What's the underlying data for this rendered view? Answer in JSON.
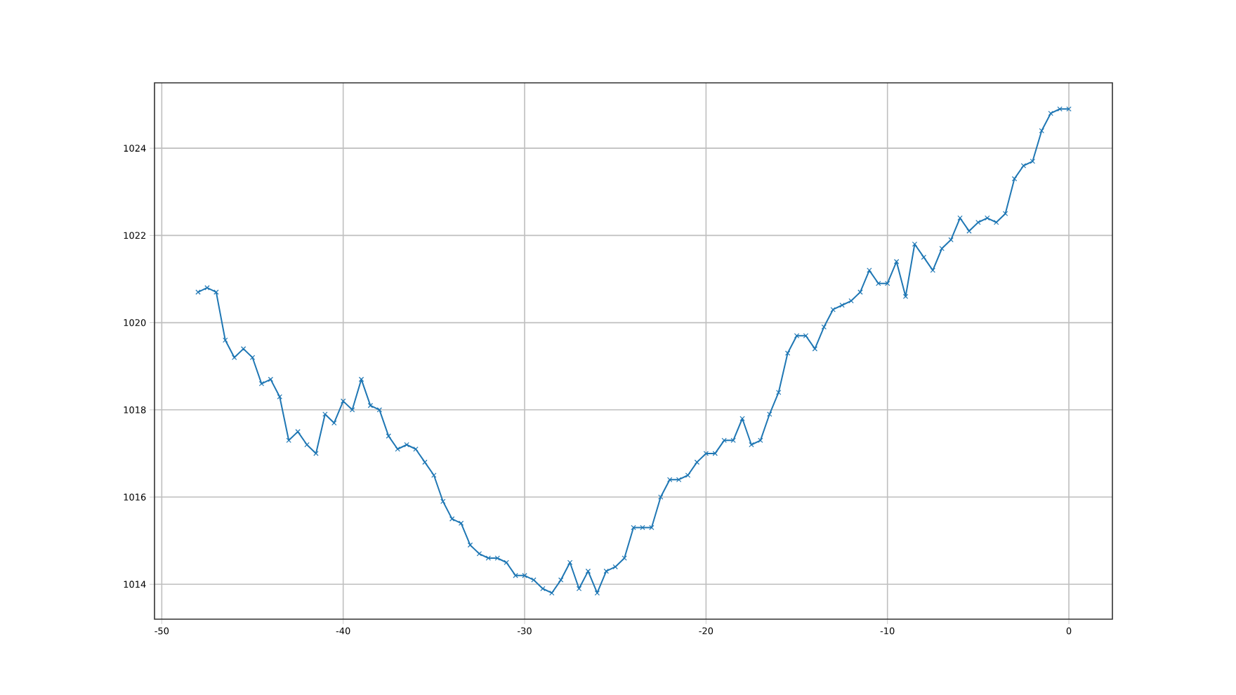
{
  "chart_data": {
    "type": "line",
    "x": [
      -48,
      -47.5,
      -47,
      -46.5,
      -46,
      -45.5,
      -45,
      -44.5,
      -44,
      -43.5,
      -43,
      -42.5,
      -42,
      -41.5,
      -41,
      -40.5,
      -40,
      -39.5,
      -39,
      -38.5,
      -38,
      -37.5,
      -37,
      -36.5,
      -36,
      -35.5,
      -35,
      -34.5,
      -34,
      -33.5,
      -33,
      -32.5,
      -32,
      -31.5,
      -31,
      -30.5,
      -30,
      -29.5,
      -29,
      -28.5,
      -28,
      -27.5,
      -27,
      -26.5,
      -26,
      -25.5,
      -25,
      -24.5,
      -24,
      -23.5,
      -23,
      -22.5,
      -22,
      -21.5,
      -21,
      -20.5,
      -20,
      -19.5,
      -19,
      -18.5,
      -18,
      -17.5,
      -17,
      -16.5,
      -16,
      -15.5,
      -15,
      -14.5,
      -14,
      -13.5,
      -13,
      -12.5,
      -12,
      -11.5,
      -11,
      -10.5,
      -10,
      -9.5,
      -9,
      -8.5,
      -8,
      -7.5,
      -7,
      -6.5,
      -6,
      -5.5,
      -5,
      -4.5,
      -4,
      -3.5,
      -3,
      -2.5,
      -2,
      -1.5,
      -1,
      -0.5,
      0
    ],
    "series": [
      {
        "color": "#1f77b4",
        "values": [
          1020.7,
          1020.8,
          1020.7,
          1019.6,
          1019.2,
          1019.4,
          1019.2,
          1018.6,
          1018.7,
          1018.3,
          1017.3,
          1017.5,
          1017.2,
          1017.0,
          1017.9,
          1017.7,
          1018.2,
          1018.0,
          1018.7,
          1018.1,
          1018.0,
          1017.4,
          1017.1,
          1017.2,
          1017.1,
          1016.8,
          1016.5,
          1015.9,
          1015.5,
          1015.4,
          1014.9,
          1014.7,
          1014.6,
          1014.6,
          1014.5,
          1014.2,
          1014.2,
          1014.1,
          1013.9,
          1013.8,
          1014.1,
          1014.5,
          1013.9,
          1014.3,
          1013.8,
          1014.3,
          1014.4,
          1014.6,
          1015.3,
          1015.3,
          1015.3,
          1016.0,
          1016.4,
          1016.4,
          1016.5,
          1016.8,
          1017.0,
          1017.0,
          1017.3,
          1017.3,
          1017.8,
          1017.2,
          1017.3,
          1017.9,
          1018.4,
          1019.3,
          1019.7,
          1019.7,
          1019.4,
          1019.9,
          1020.3,
          1020.4,
          1020.5,
          1020.7,
          1021.2,
          1020.9,
          1020.9,
          1021.4,
          1020.6,
          1021.8,
          1021.5,
          1021.2,
          1021.7,
          1021.9,
          1022.4,
          1022.1,
          1022.3,
          1022.4,
          1022.3,
          1022.5,
          1023.3,
          1023.6,
          1023.7,
          1024.4,
          1024.8,
          1024.9,
          1024.9
        ]
      }
    ],
    "xlim": [
      -50.4,
      2.4
    ],
    "ylim": [
      1013.2,
      1025.5
    ],
    "xticks": [
      -50,
      -40,
      -30,
      -20,
      -10,
      0
    ],
    "yticks": [
      1014,
      1016,
      1018,
      1020,
      1022,
      1024
    ],
    "grid": true,
    "marker": "cross",
    "line_style": "solid"
  }
}
